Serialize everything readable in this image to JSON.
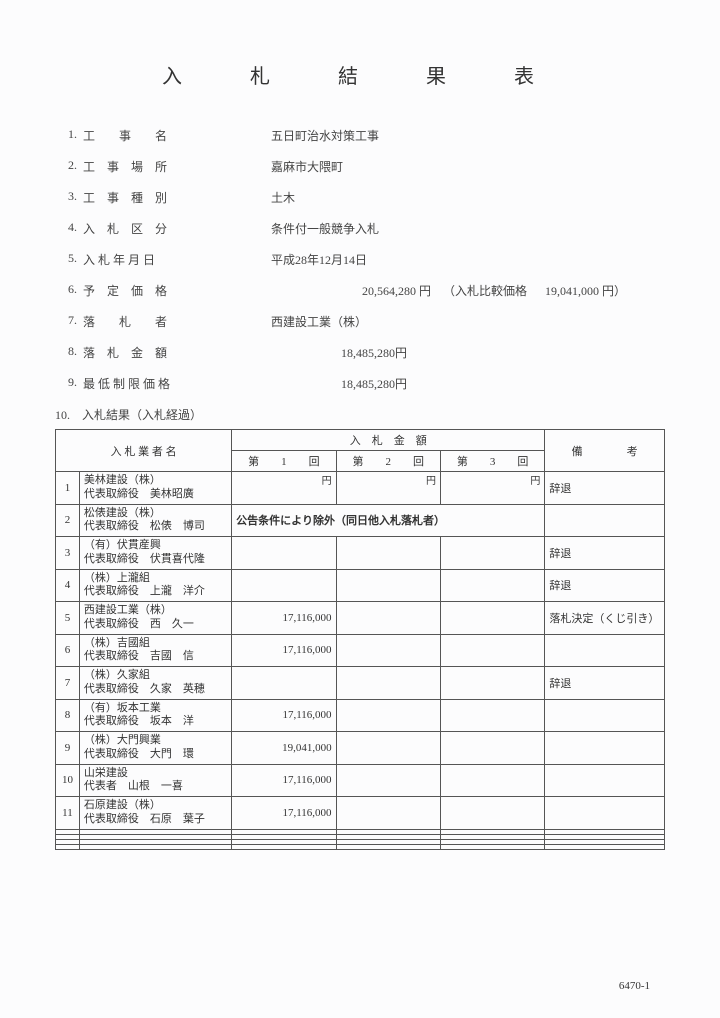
{
  "title": "入　札　結　果　表",
  "meta": [
    {
      "num": "1.",
      "label": "工　　事　　名",
      "value": "五日町治水対策工事"
    },
    {
      "num": "2.",
      "label": "工　事　場　所",
      "value": "嘉麻市大隈町"
    },
    {
      "num": "3.",
      "label": "工　事　種　別",
      "value": "土木"
    },
    {
      "num": "4.",
      "label": "入　札　区　分",
      "value": "条件付一般競争入札"
    },
    {
      "num": "5.",
      "label": "入 札 年 月 日",
      "value": "平成28年12月14日"
    }
  ],
  "price_line": {
    "num": "6.",
    "label": "予　定　価　格",
    "main": "20,564,280 円",
    "paren_label": "（入札比較価格",
    "paren_val": "19,041,000 円）"
  },
  "meta2": [
    {
      "num": "7.",
      "label": "落　　札　　者",
      "value": "西建設工業（株）"
    },
    {
      "num": "8.",
      "label": "落　札　金　額",
      "value": "18,485,280円",
      "right": true
    },
    {
      "num": "9.",
      "label": "最 低 制 限 価 格",
      "value": "18,485,280円",
      "right": true
    }
  ],
  "section10": "10.　入札結果（入札経過）",
  "table": {
    "header_bidder": "入 札 業 者 名",
    "header_amount": "入　札　金　額",
    "header_note": "備　　　　考",
    "round_labels": [
      "第　　1　　回",
      "第　　2　　回",
      "第　　3　　回"
    ],
    "yen": "円",
    "rows": [
      {
        "idx": "1",
        "l1": "美林建設（株）",
        "l2": "代表取締役　美林昭廣",
        "a1": "",
        "a2": "",
        "a3": "",
        "note": "辞退"
      },
      {
        "idx": "2",
        "l1": "松俵建設（株）",
        "l2": "代表取締役　松俵　博司",
        "a1_span": "公告条件により除外（同日他入札落札者）",
        "note": ""
      },
      {
        "idx": "3",
        "l1": "（有）伏貫産興",
        "l2": "代表取締役　伏貫喜代隆",
        "a1": "",
        "a2": "",
        "a3": "",
        "note": "辞退"
      },
      {
        "idx": "4",
        "l1": "（株）上瀧組",
        "l2": "代表取締役　上瀧　洋介",
        "a1": "",
        "a2": "",
        "a3": "",
        "note": "辞退"
      },
      {
        "idx": "5",
        "l1": "西建設工業（株）",
        "l2": "代表取締役　西　久一",
        "a1": "17,116,000",
        "a2": "",
        "a3": "",
        "note": "落札決定（くじ引き）"
      },
      {
        "idx": "6",
        "l1": "（株）吉國組",
        "l2": "代表取締役　吉國　信",
        "a1": "17,116,000",
        "a2": "",
        "a3": "",
        "note": ""
      },
      {
        "idx": "7",
        "l1": "（株）久家組",
        "l2": "代表取締役　久家　英穂",
        "a1": "",
        "a2": "",
        "a3": "",
        "note": "辞退"
      },
      {
        "idx": "8",
        "l1": "（有）坂本工業",
        "l2": "代表取締役　坂本　洋",
        "a1": "17,116,000",
        "a2": "",
        "a3": "",
        "note": ""
      },
      {
        "idx": "9",
        "l1": "（株）大門興業",
        "l2": "代表取締役　大門　環",
        "a1": "19,041,000",
        "a2": "",
        "a3": "",
        "note": ""
      },
      {
        "idx": "10",
        "l1": "山栄建設",
        "l2": "代表者　山根　一喜",
        "a1": "17,116,000",
        "a2": "",
        "a3": "",
        "note": ""
      },
      {
        "idx": "11",
        "l1": "石原建設（株）",
        "l2": "代表取締役　石原　葉子",
        "a1": "17,116,000",
        "a2": "",
        "a3": "",
        "note": ""
      },
      {
        "idx": "",
        "l1": "",
        "l2": "",
        "a1": "",
        "a2": "",
        "a3": "",
        "note": ""
      },
      {
        "idx": "",
        "l1": "",
        "l2": "",
        "a1": "",
        "a2": "",
        "a3": "",
        "note": ""
      },
      {
        "idx": "",
        "l1": "",
        "l2": "",
        "a1": "",
        "a2": "",
        "a3": "",
        "note": ""
      },
      {
        "idx": "",
        "l1": "",
        "l2": "",
        "a1": "",
        "a2": "",
        "a3": "",
        "note": ""
      }
    ]
  },
  "footer": "6470-1"
}
